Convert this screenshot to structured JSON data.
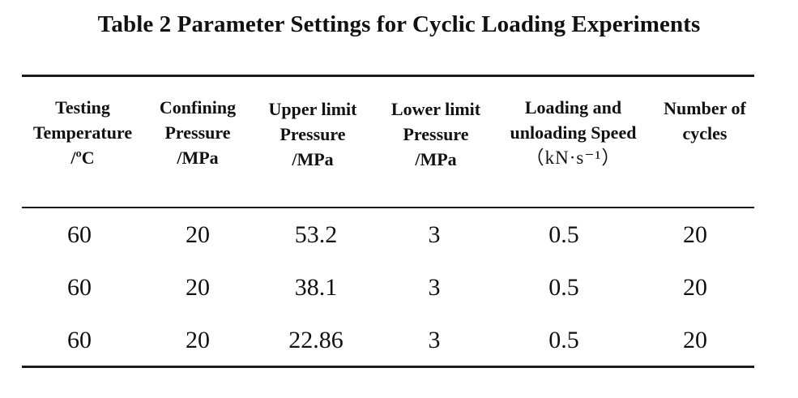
{
  "table": {
    "caption": "Table 2 Parameter Settings for Cyclic Loading Experiments",
    "columns": [
      {
        "lines": [
          "Testing",
          "Temperature",
          "/ºC"
        ]
      },
      {
        "lines": [
          "Confining",
          "Pressure",
          "/MPa"
        ]
      },
      {
        "lines": [
          "Upper limit",
          "Pressure",
          "/MPa"
        ]
      },
      {
        "lines": [
          "Lower limit",
          "Pressure",
          "/MPa"
        ]
      },
      {
        "lines": [
          "Loading and",
          "unloading Speed",
          "（kN·s⁻¹）"
        ]
      },
      {
        "lines": [
          "Number of",
          "cycles"
        ]
      }
    ],
    "rows": [
      [
        "60",
        "20",
        "53.2",
        "3",
        "0.5",
        "20"
      ],
      [
        "60",
        "20",
        "38.1",
        "3",
        "0.5",
        "20"
      ],
      [
        "60",
        "20",
        "22.86",
        "3",
        "0.5",
        "20"
      ]
    ]
  }
}
